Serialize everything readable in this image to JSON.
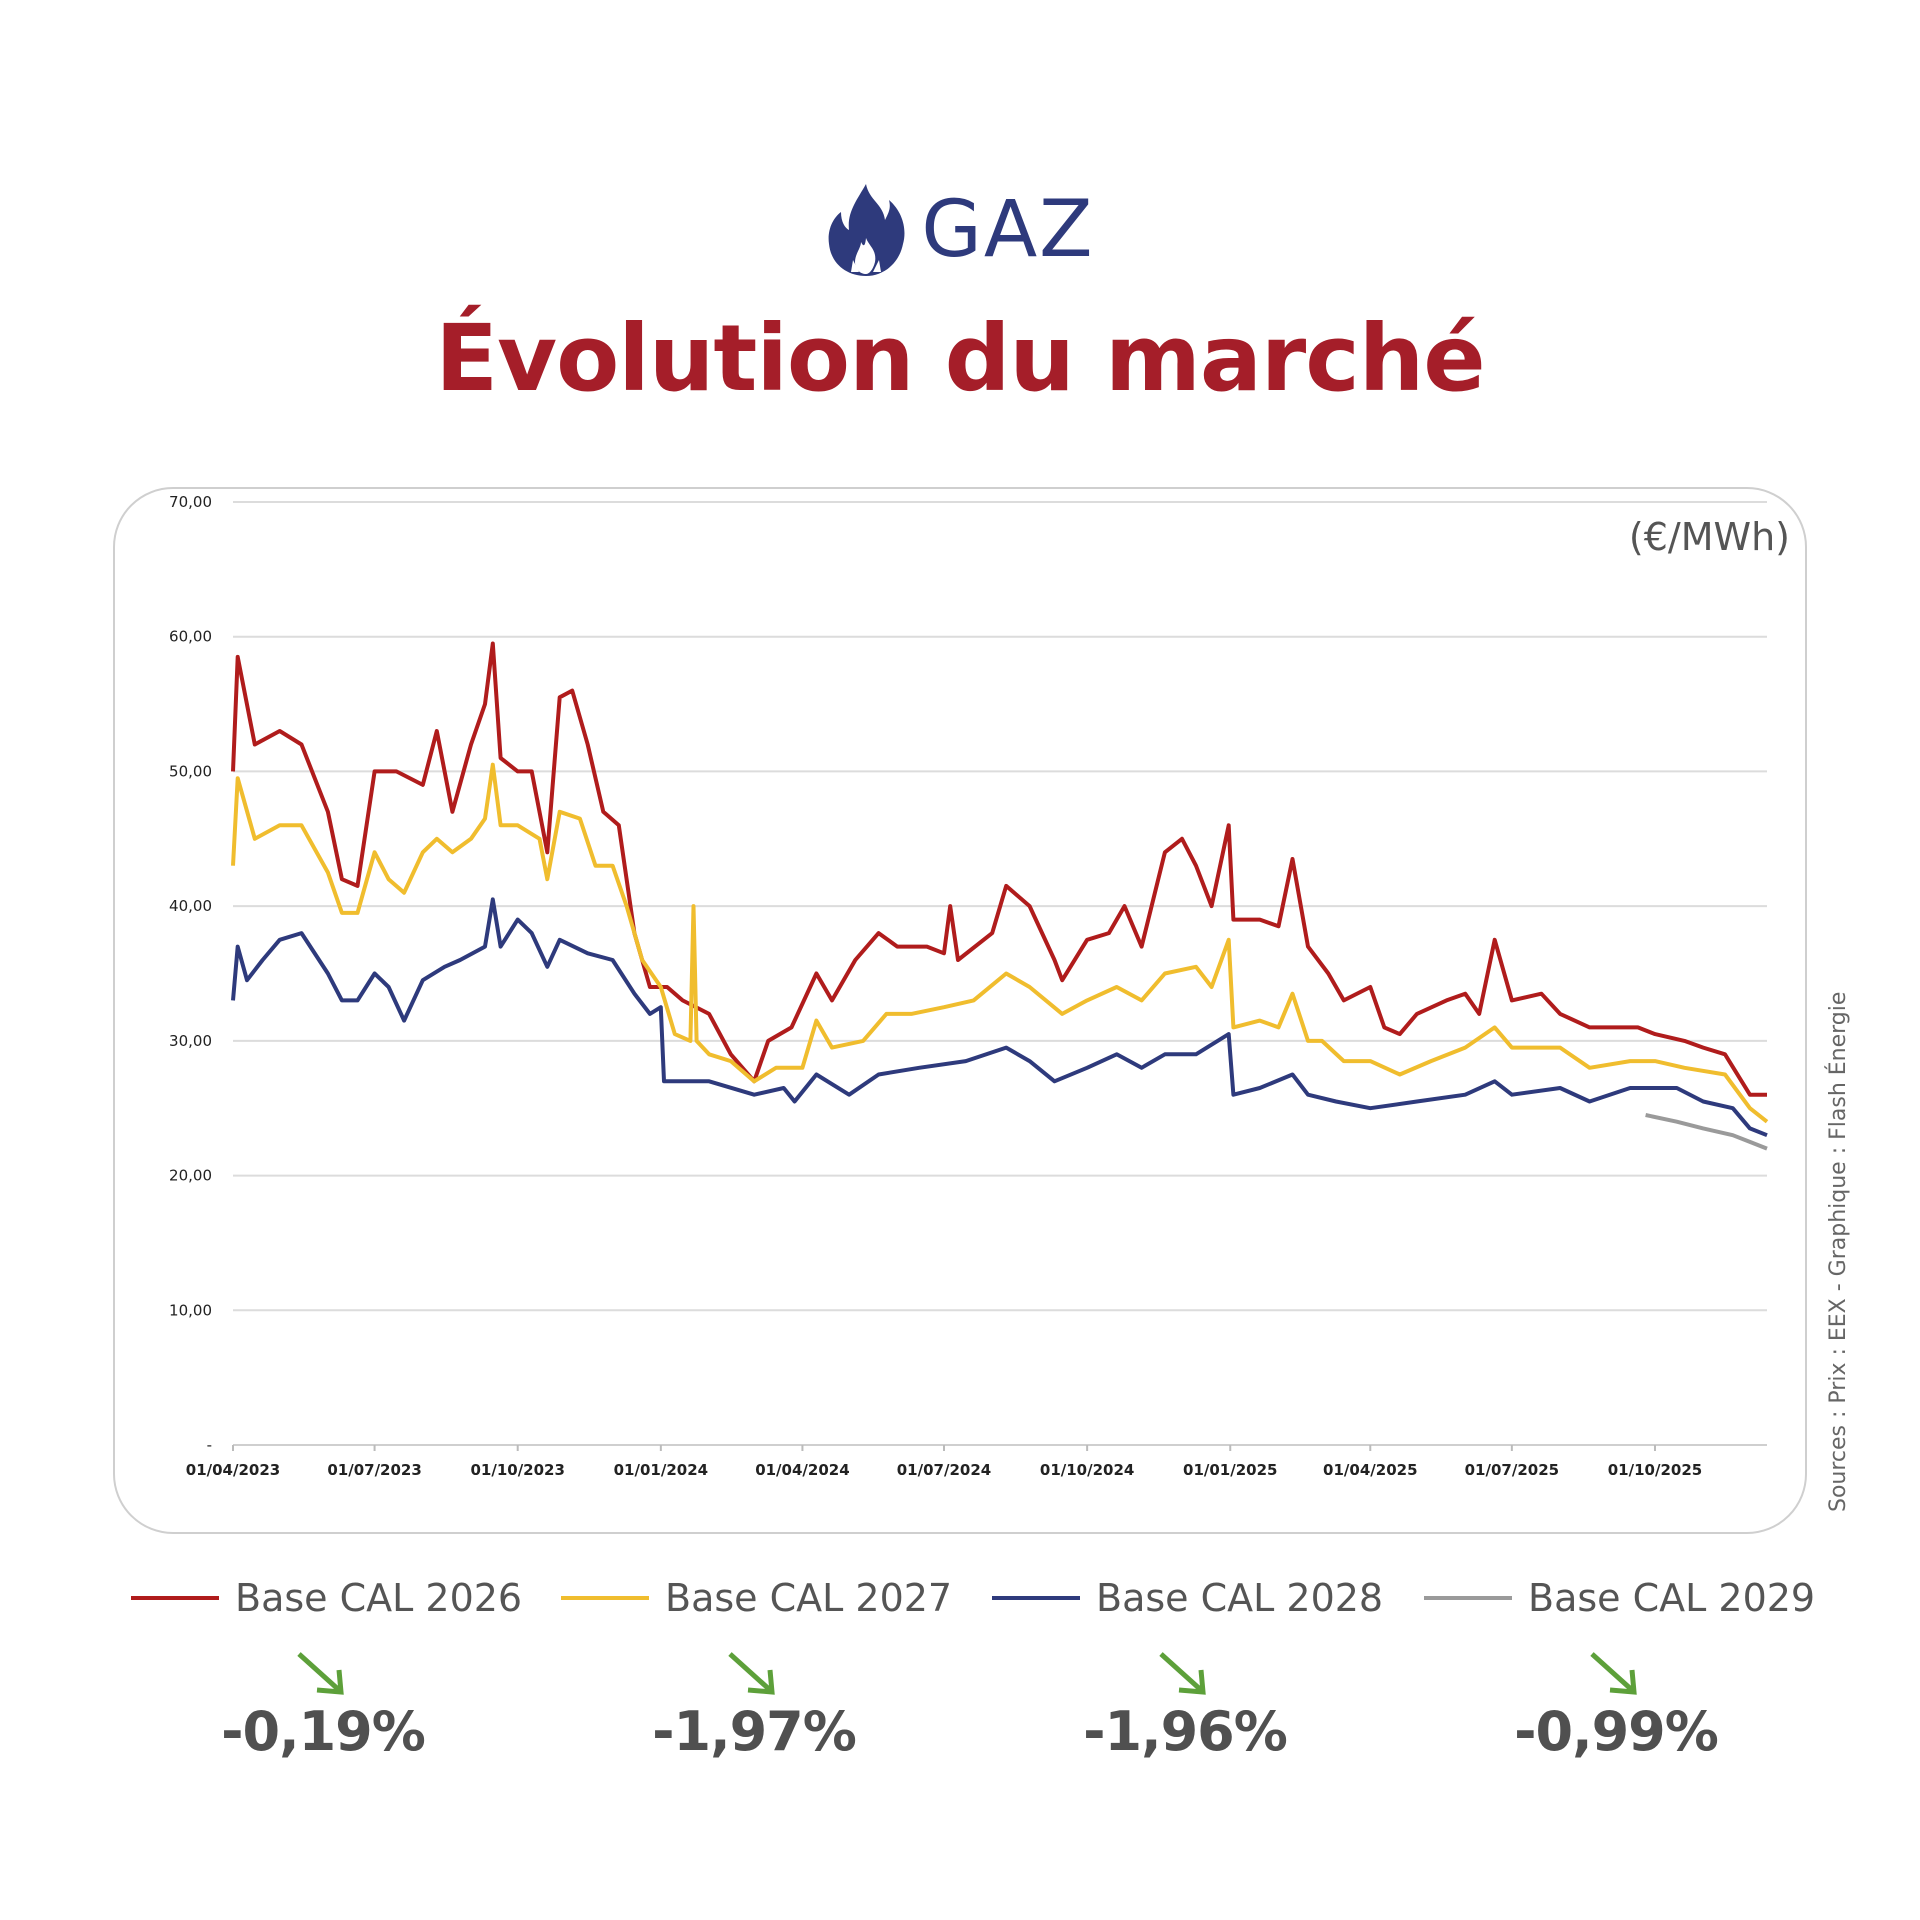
{
  "header": {
    "icon": "flame-icon",
    "label": "GAZ",
    "title": "Évolution du marché"
  },
  "unit": "(€/MWh)",
  "source": "Sources : Prix : EEX - Graphique : Flash Énergie",
  "legend": [
    {
      "label": "Base CAL 2026",
      "color": "#b01c1c"
    },
    {
      "label": "Base CAL 2027",
      "color": "#f0bd2e"
    },
    {
      "label": "Base CAL 2028",
      "color": "#2e3a7c"
    },
    {
      "label": "Base CAL 2029",
      "color": "#9a9a9a"
    }
  ],
  "changes": [
    {
      "value": "-0,19%",
      "icon": "arrow-down-right-icon",
      "color": "#5da03a"
    },
    {
      "value": "-1,97%",
      "icon": "arrow-down-right-icon",
      "color": "#5da03a"
    },
    {
      "value": "-1,96%",
      "icon": "arrow-down-right-icon",
      "color": "#5da03a"
    },
    {
      "value": "-0,99%",
      "icon": "arrow-down-right-icon",
      "color": "#5da03a"
    }
  ],
  "chart_data": {
    "type": "line",
    "title": "",
    "xlabel": "",
    "ylabel": "(€/MWh)",
    "ylim": [
      0,
      70
    ],
    "xlim": [
      "2023-04-01",
      "2025-12-12"
    ],
    "grid": true,
    "legend_position": "bottom",
    "y_ticks": [
      "-",
      "10,00",
      "20,00",
      "30,00",
      "40,00",
      "50,00",
      "60,00",
      "70,00"
    ],
    "x_ticks": [
      "01/04/2023",
      "01/07/2023",
      "01/10/2023",
      "01/01/2024",
      "01/04/2024",
      "01/07/2024",
      "01/10/2024",
      "01/01/2025",
      "01/04/2025",
      "01/07/2025",
      "01/10/2025"
    ],
    "series": [
      {
        "name": "Base CAL 2026",
        "color": "#b01c1c",
        "points": [
          [
            "2023-04-01",
            50
          ],
          [
            "2023-04-04",
            58.5
          ],
          [
            "2023-04-15",
            52
          ],
          [
            "2023-05-01",
            53
          ],
          [
            "2023-05-15",
            52
          ],
          [
            "2023-06-01",
            47
          ],
          [
            "2023-06-10",
            42
          ],
          [
            "2023-06-20",
            41.5
          ],
          [
            "2023-07-01",
            50
          ],
          [
            "2023-07-15",
            50
          ],
          [
            "2023-08-01",
            49
          ],
          [
            "2023-08-10",
            53
          ],
          [
            "2023-08-20",
            47
          ],
          [
            "2023-09-01",
            52
          ],
          [
            "2023-09-10",
            55
          ],
          [
            "2023-09-15",
            59.5
          ],
          [
            "2023-09-20",
            51
          ],
          [
            "2023-10-01",
            50
          ],
          [
            "2023-10-10",
            50
          ],
          [
            "2023-10-20",
            44
          ],
          [
            "2023-10-28",
            55.5
          ],
          [
            "2023-11-05",
            56
          ],
          [
            "2023-11-15",
            52
          ],
          [
            "2023-11-25",
            47
          ],
          [
            "2023-12-05",
            46
          ],
          [
            "2023-12-15",
            38
          ],
          [
            "2023-12-25",
            34
          ],
          [
            "2024-01-05",
            34
          ],
          [
            "2024-01-15",
            33
          ],
          [
            "2024-02-01",
            32
          ],
          [
            "2024-02-15",
            29
          ],
          [
            "2024-03-01",
            27
          ],
          [
            "2024-03-10",
            30
          ],
          [
            "2024-03-25",
            31
          ],
          [
            "2024-04-10",
            35
          ],
          [
            "2024-04-20",
            33
          ],
          [
            "2024-05-05",
            36
          ],
          [
            "2024-05-20",
            38
          ],
          [
            "2024-06-01",
            37
          ],
          [
            "2024-06-20",
            37
          ],
          [
            "2024-07-01",
            36.5
          ],
          [
            "2024-07-05",
            40
          ],
          [
            "2024-07-10",
            36
          ],
          [
            "2024-08-01",
            38
          ],
          [
            "2024-08-10",
            41.5
          ],
          [
            "2024-08-25",
            40
          ],
          [
            "2024-09-10",
            36
          ],
          [
            "2024-09-15",
            34.5
          ],
          [
            "2024-10-01",
            37.5
          ],
          [
            "2024-10-15",
            38
          ],
          [
            "2024-10-25",
            40
          ],
          [
            "2024-11-05",
            37
          ],
          [
            "2024-11-20",
            44
          ],
          [
            "2024-12-01",
            45
          ],
          [
            "2024-12-10",
            43
          ],
          [
            "2024-12-20",
            40
          ],
          [
            "2024-12-31",
            46
          ],
          [
            "2025-01-03",
            39
          ],
          [
            "2025-01-20",
            39
          ],
          [
            "2025-02-01",
            38.5
          ],
          [
            "2025-02-10",
            43.5
          ],
          [
            "2025-02-20",
            37
          ],
          [
            "2025-03-05",
            35
          ],
          [
            "2025-03-15",
            33
          ],
          [
            "2025-04-01",
            34
          ],
          [
            "2025-04-10",
            31
          ],
          [
            "2025-04-20",
            30.5
          ],
          [
            "2025-05-01",
            32
          ],
          [
            "2025-05-20",
            33
          ],
          [
            "2025-06-01",
            33.5
          ],
          [
            "2025-06-10",
            32
          ],
          [
            "2025-06-20",
            37.5
          ],
          [
            "2025-07-01",
            33
          ],
          [
            "2025-07-20",
            33.5
          ],
          [
            "2025-08-01",
            32
          ],
          [
            "2025-08-20",
            31
          ],
          [
            "2025-09-01",
            31
          ],
          [
            "2025-09-20",
            31
          ],
          [
            "2025-10-01",
            30.5
          ],
          [
            "2025-10-20",
            30
          ],
          [
            "2025-11-01",
            29.5
          ],
          [
            "2025-11-15",
            29
          ],
          [
            "2025-12-01",
            26
          ],
          [
            "2025-12-12",
            26
          ]
        ]
      },
      {
        "name": "Base CAL 2027",
        "color": "#f0bd2e",
        "points": [
          [
            "2023-04-01",
            43
          ],
          [
            "2023-04-04",
            49.5
          ],
          [
            "2023-04-15",
            45
          ],
          [
            "2023-05-01",
            46
          ],
          [
            "2023-05-15",
            46
          ],
          [
            "2023-06-01",
            42.5
          ],
          [
            "2023-06-10",
            39.5
          ],
          [
            "2023-06-20",
            39.5
          ],
          [
            "2023-07-01",
            44
          ],
          [
            "2023-07-10",
            42
          ],
          [
            "2023-07-20",
            41
          ],
          [
            "2023-08-01",
            44
          ],
          [
            "2023-08-10",
            45
          ],
          [
            "2023-08-20",
            44
          ],
          [
            "2023-09-01",
            45
          ],
          [
            "2023-09-10",
            46.5
          ],
          [
            "2023-09-15",
            50.5
          ],
          [
            "2023-09-20",
            46
          ],
          [
            "2023-10-01",
            46
          ],
          [
            "2023-10-15",
            45
          ],
          [
            "2023-10-20",
            42
          ],
          [
            "2023-10-28",
            47
          ],
          [
            "2023-11-10",
            46.5
          ],
          [
            "2023-11-20",
            43
          ],
          [
            "2023-12-01",
            43
          ],
          [
            "2023-12-10",
            40
          ],
          [
            "2023-12-20",
            36
          ],
          [
            "2024-01-01",
            34
          ],
          [
            "2024-01-10",
            30.5
          ],
          [
            "2024-01-20",
            30
          ],
          [
            "2024-01-22",
            40
          ],
          [
            "2024-01-24",
            30
          ],
          [
            "2024-02-01",
            29
          ],
          [
            "2024-02-15",
            28.5
          ],
          [
            "2024-03-01",
            27
          ],
          [
            "2024-03-15",
            28
          ],
          [
            "2024-04-01",
            28
          ],
          [
            "2024-04-10",
            31.5
          ],
          [
            "2024-04-20",
            29.5
          ],
          [
            "2024-05-10",
            30
          ],
          [
            "2024-05-25",
            32
          ],
          [
            "2024-06-10",
            32
          ],
          [
            "2024-07-01",
            32.5
          ],
          [
            "2024-07-20",
            33
          ],
          [
            "2024-08-10",
            35
          ],
          [
            "2024-08-25",
            34
          ],
          [
            "2024-09-15",
            32
          ],
          [
            "2024-10-01",
            33
          ],
          [
            "2024-10-20",
            34
          ],
          [
            "2024-11-05",
            33
          ],
          [
            "2024-11-20",
            35
          ],
          [
            "2024-12-10",
            35.5
          ],
          [
            "2024-12-20",
            34
          ],
          [
            "2024-12-31",
            37.5
          ],
          [
            "2025-01-03",
            31
          ],
          [
            "2025-01-20",
            31.5
          ],
          [
            "2025-02-01",
            31
          ],
          [
            "2025-02-10",
            33.5
          ],
          [
            "2025-02-20",
            30
          ],
          [
            "2025-03-01",
            30
          ],
          [
            "2025-03-15",
            28.5
          ],
          [
            "2025-04-01",
            28.5
          ],
          [
            "2025-04-20",
            27.5
          ],
          [
            "2025-05-10",
            28.5
          ],
          [
            "2025-06-01",
            29.5
          ],
          [
            "2025-06-20",
            31
          ],
          [
            "2025-07-01",
            29.5
          ],
          [
            "2025-08-01",
            29.5
          ],
          [
            "2025-08-20",
            28
          ],
          [
            "2025-09-15",
            28.5
          ],
          [
            "2025-10-01",
            28.5
          ],
          [
            "2025-10-20",
            28
          ],
          [
            "2025-11-15",
            27.5
          ],
          [
            "2025-12-01",
            25
          ],
          [
            "2025-12-12",
            24
          ]
        ]
      },
      {
        "name": "Base CAL 2028",
        "color": "#2e3a7c",
        "points": [
          [
            "2023-04-01",
            33
          ],
          [
            "2023-04-04",
            37
          ],
          [
            "2023-04-10",
            34.5
          ],
          [
            "2023-04-20",
            36
          ],
          [
            "2023-05-01",
            37.5
          ],
          [
            "2023-05-15",
            38
          ],
          [
            "2023-06-01",
            35
          ],
          [
            "2023-06-10",
            33
          ],
          [
            "2023-06-20",
            33
          ],
          [
            "2023-07-01",
            35
          ],
          [
            "2023-07-10",
            34
          ],
          [
            "2023-07-20",
            31.5
          ],
          [
            "2023-08-01",
            34.5
          ],
          [
            "2023-08-15",
            35.5
          ],
          [
            "2023-08-25",
            36
          ],
          [
            "2023-09-10",
            37
          ],
          [
            "2023-09-15",
            40.5
          ],
          [
            "2023-09-20",
            37
          ],
          [
            "2023-10-01",
            39
          ],
          [
            "2023-10-10",
            38
          ],
          [
            "2023-10-20",
            35.5
          ],
          [
            "2023-10-28",
            37.5
          ],
          [
            "2023-11-15",
            36.5
          ],
          [
            "2023-12-01",
            36
          ],
          [
            "2023-12-15",
            33.5
          ],
          [
            "2023-12-25",
            32
          ],
          [
            "2024-01-01",
            32.5
          ],
          [
            "2024-01-03",
            27
          ],
          [
            "2024-02-01",
            27
          ],
          [
            "2024-03-01",
            26
          ],
          [
            "2024-03-20",
            26.5
          ],
          [
            "2024-03-27",
            25.5
          ],
          [
            "2024-04-10",
            27.5
          ],
          [
            "2024-05-01",
            26
          ],
          [
            "2024-05-20",
            27.5
          ],
          [
            "2024-06-15",
            28
          ],
          [
            "2024-07-15",
            28.5
          ],
          [
            "2024-08-10",
            29.5
          ],
          [
            "2024-08-25",
            28.5
          ],
          [
            "2024-09-10",
            27
          ],
          [
            "2024-10-01",
            28
          ],
          [
            "2024-10-20",
            29
          ],
          [
            "2024-11-05",
            28
          ],
          [
            "2024-11-20",
            29
          ],
          [
            "2024-12-10",
            29
          ],
          [
            "2024-12-31",
            30.5
          ],
          [
            "2025-01-03",
            26
          ],
          [
            "2025-01-20",
            26.5
          ],
          [
            "2025-02-10",
            27.5
          ],
          [
            "2025-02-20",
            26
          ],
          [
            "2025-03-10",
            25.5
          ],
          [
            "2025-04-01",
            25
          ],
          [
            "2025-05-01",
            25.5
          ],
          [
            "2025-06-01",
            26
          ],
          [
            "2025-06-20",
            27
          ],
          [
            "2025-07-01",
            26
          ],
          [
            "2025-08-01",
            26.5
          ],
          [
            "2025-08-20",
            25.5
          ],
          [
            "2025-09-15",
            26.5
          ],
          [
            "2025-10-15",
            26.5
          ],
          [
            "2025-11-01",
            25.5
          ],
          [
            "2025-11-20",
            25
          ],
          [
            "2025-12-01",
            23.5
          ],
          [
            "2025-12-12",
            23
          ]
        ]
      },
      {
        "name": "Base CAL 2029",
        "color": "#9a9a9a",
        "points": [
          [
            "2025-09-25",
            24.5
          ],
          [
            "2025-10-15",
            24
          ],
          [
            "2025-11-01",
            23.5
          ],
          [
            "2025-11-20",
            23
          ],
          [
            "2025-12-01",
            22.5
          ],
          [
            "2025-12-12",
            22
          ]
        ]
      }
    ]
  }
}
